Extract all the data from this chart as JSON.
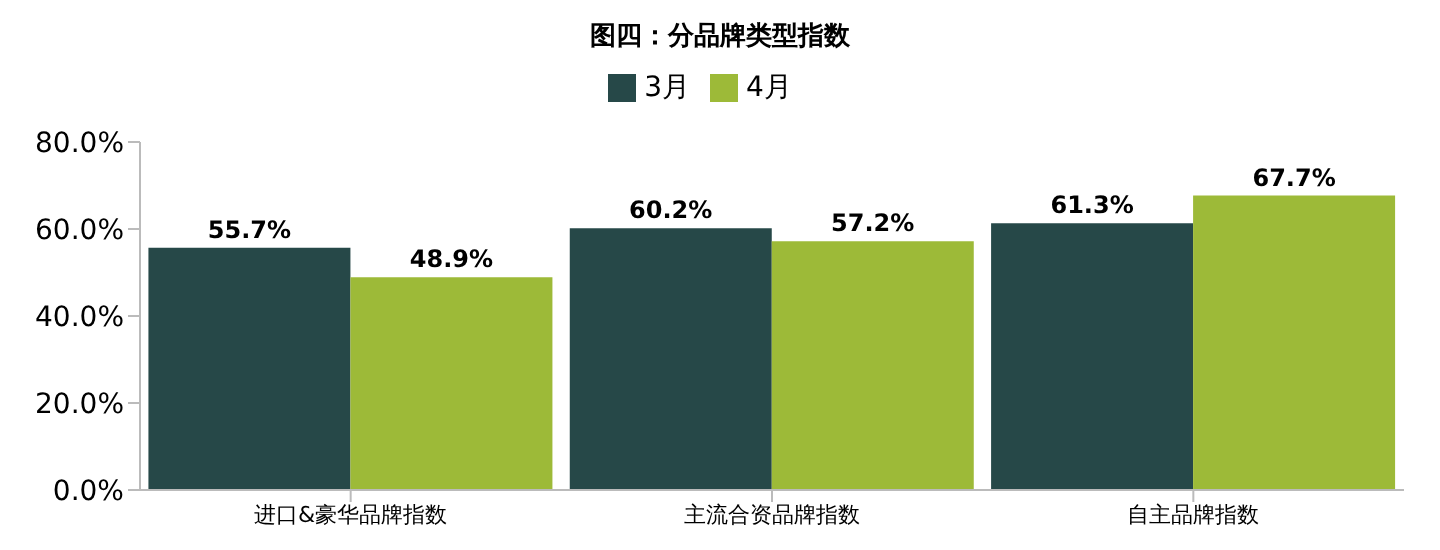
{
  "chart_data": {
    "type": "bar",
    "title": "图四：分品牌类型指数",
    "categories": [
      "进口&豪华品牌指数",
      "主流合资品牌指数",
      "自主品牌指数"
    ],
    "series": [
      {
        "name": "3月",
        "color": "#264848",
        "values": [
          55.7,
          60.2,
          61.3
        ],
        "value_labels": [
          "55.7%",
          "60.2%",
          "61.3%"
        ]
      },
      {
        "name": "4月",
        "color": "#9dba38",
        "values": [
          48.9,
          57.2,
          67.7
        ],
        "value_labels": [
          "48.9%",
          "57.2%",
          "67.7%"
        ]
      }
    ],
    "ylim": [
      0,
      80
    ],
    "yticks": [
      {
        "value": 0,
        "label": "0.0%"
      },
      {
        "value": 20,
        "label": "20.0%"
      },
      {
        "value": 40,
        "label": "40.0%"
      },
      {
        "value": 60,
        "label": "60.0%"
      },
      {
        "value": 80,
        "label": "80.0%"
      }
    ],
    "grid": false,
    "legend": "top"
  }
}
